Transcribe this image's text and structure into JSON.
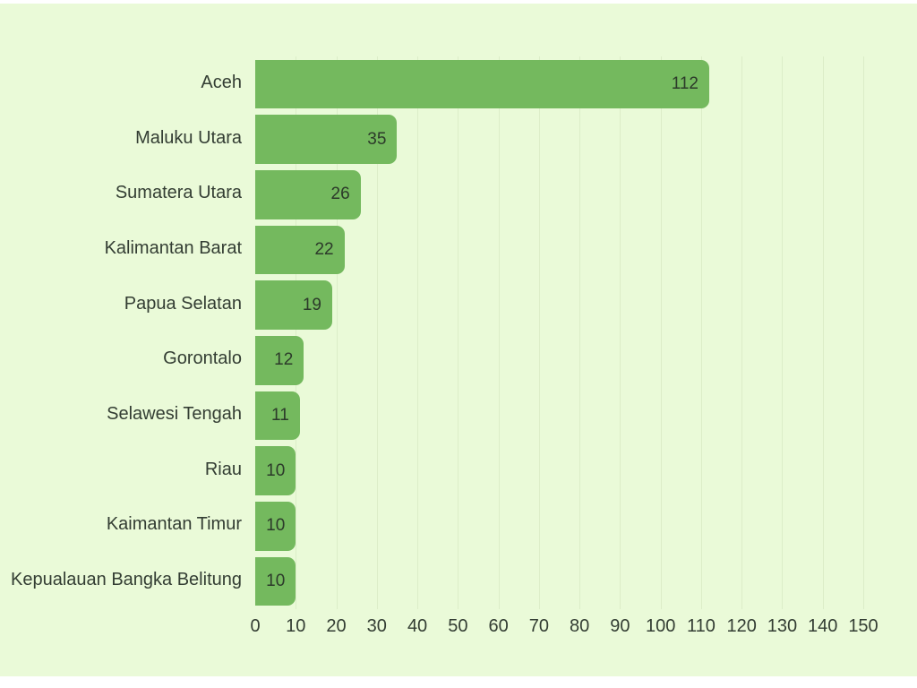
{
  "colors": {
    "canvas_background": "#eafad8",
    "bar_fill": "#74b95e",
    "grid_line": "#dcedc8",
    "label_text": "#333d33",
    "value_text": "#2c3a2a",
    "frame_background": "#ffffff"
  },
  "chart_data": {
    "type": "bar",
    "orientation": "horizontal",
    "title": "",
    "xlabel": "",
    "ylabel": "",
    "legend": null,
    "grid": "vertical",
    "xlim": [
      0,
      150
    ],
    "x_ticks": [
      0,
      10,
      20,
      30,
      40,
      50,
      60,
      70,
      80,
      90,
      100,
      110,
      120,
      130,
      140,
      150
    ],
    "categories": [
      "Aceh",
      "Maluku Utara",
      "Sumatera Utara",
      "Kalimantan Barat",
      "Papua Selatan",
      "Gorontalo",
      "Selawesi Tengah",
      "Riau",
      "Kaimantan Timur",
      "Kepualauan Bangka Belitung"
    ],
    "values": [
      112,
      35,
      26,
      22,
      19,
      12,
      11,
      10,
      10,
      10
    ],
    "value_labels_position": "inside-end"
  }
}
